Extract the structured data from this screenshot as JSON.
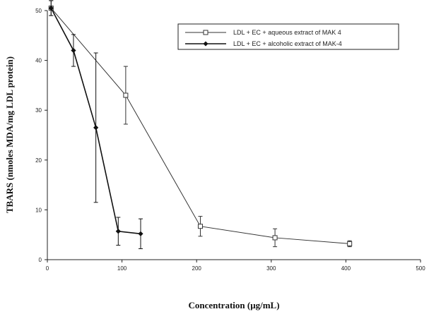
{
  "chart_data": {
    "type": "line",
    "title": "",
    "xlabel": "Concentration (μg/mL)",
    "ylabel": "TBARS (nmoles MDA/mg LDL protein)",
    "xlim": [
      0,
      500
    ],
    "ylim": [
      0,
      50
    ],
    "xticks": [
      0,
      100,
      200,
      300,
      400,
      500
    ],
    "yticks": [
      0,
      10,
      20,
      30,
      40,
      50
    ],
    "grid": false,
    "legend_position": "top-right",
    "series": [
      {
        "name": "LDL + EC + aqueous extract of MAK 4",
        "marker": "open-square",
        "color": "#333333",
        "x": [
          5,
          105,
          205,
          305,
          405
        ],
        "y": [
          50.5,
          33,
          6.7,
          4.4,
          3.2
        ],
        "error": [
          1.5,
          5.8,
          2.0,
          1.8,
          0.6
        ]
      },
      {
        "name": "LDL + EC + alcoholic extract of MAK-4",
        "marker": "filled-diamond",
        "color": "#111111",
        "x": [
          5,
          35,
          65,
          95,
          125
        ],
        "y": [
          50.5,
          42,
          26.5,
          5.7,
          5.2
        ],
        "error": [
          1.5,
          3.2,
          15.0,
          2.8,
          3.0
        ]
      }
    ]
  }
}
